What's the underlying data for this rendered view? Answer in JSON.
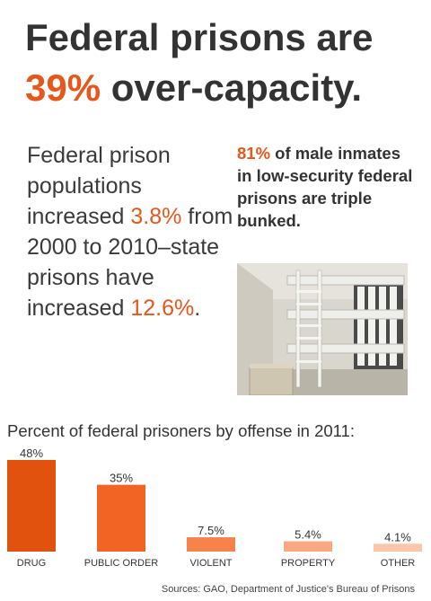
{
  "headline": {
    "line1": "Federal prisons are",
    "accent": "39%",
    "rest": "over-capacity."
  },
  "population": {
    "text_a": "Federal prison populations increased",
    "value_a": "3.8%",
    "text_b": "from 2000 to 2010–state prisons have increased",
    "value_b": "12.6%",
    "text_c": "."
  },
  "callout": {
    "accent": "81%",
    "text": "of male inmates in low-security federal prisons are triple bunked."
  },
  "photo": {
    "icon": "prison-cell-triple-bunk-photo"
  },
  "chart_data": {
    "type": "bar",
    "title": "Percent of federal prisoners by offense in 2011:",
    "categories": [
      "DRUG",
      "PUBLIC ORDER",
      "VIOLENT",
      "PROPERTY",
      "OTHER"
    ],
    "values": [
      48,
      35,
      7.5,
      5.4,
      4.1
    ],
    "data_labels": [
      "48%",
      "35%",
      "7.5%",
      "5.4%",
      "4.1%"
    ],
    "colors": [
      "#e2520f",
      "#f26424",
      "#f6834c",
      "#f9a882",
      "#fbc5a7"
    ],
    "ylim": [
      0,
      48
    ],
    "grid": false,
    "legend": "none"
  },
  "source": "Sources: GAO, Department of Justice's Bureau of Prisons",
  "colors": {
    "accent": "#e8561b",
    "text": "#333333"
  }
}
